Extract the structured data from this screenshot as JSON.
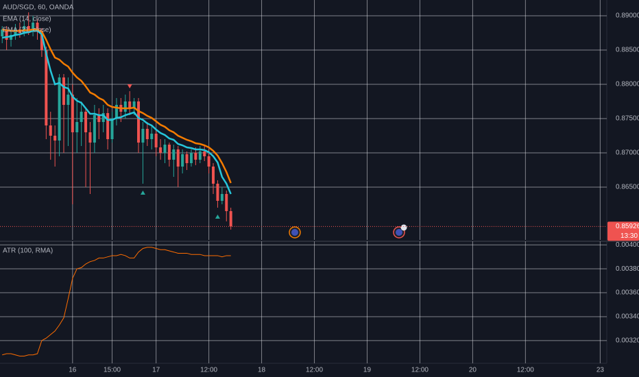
{
  "chart_data": [
    {
      "type": "candlestick",
      "title": "AUD/SGD, 60, OANDA",
      "up_color": "#26a69a",
      "down_color": "#ef5350",
      "open": [
        0.887,
        0.888,
        0.8865,
        0.8872,
        0.888,
        0.8875,
        0.8885,
        0.888,
        0.889,
        0.8878,
        0.885,
        0.874,
        0.8725,
        0.8718,
        0.881,
        0.877,
        0.8785,
        0.873,
        0.8745,
        0.876,
        0.873,
        0.8715,
        0.8755,
        0.8745,
        0.8758,
        0.872,
        0.875,
        0.877,
        0.876,
        0.8775,
        0.8765,
        0.8775,
        0.8715,
        0.8735,
        0.872,
        0.8728,
        0.8708,
        0.87,
        0.8712,
        0.869,
        0.8705,
        0.868,
        0.8698,
        0.8685,
        0.87,
        0.869,
        0.8702,
        0.8695,
        0.868,
        0.8655,
        0.863,
        0.864,
        0.8615
      ],
      "high": [
        0.8885,
        0.8885,
        0.888,
        0.8888,
        0.889,
        0.8893,
        0.8905,
        0.89,
        0.8895,
        0.8882,
        0.8855,
        0.876,
        0.874,
        0.8815,
        0.8815,
        0.881,
        0.88,
        0.878,
        0.8775,
        0.8765,
        0.8745,
        0.877,
        0.8765,
        0.877,
        0.8765,
        0.876,
        0.878,
        0.878,
        0.8785,
        0.879,
        0.878,
        0.878,
        0.8745,
        0.8745,
        0.874,
        0.8735,
        0.872,
        0.872,
        0.8715,
        0.8712,
        0.871,
        0.8705,
        0.8702,
        0.8705,
        0.8708,
        0.871,
        0.8712,
        0.8705,
        0.8685,
        0.866,
        0.865,
        0.8645,
        0.862
      ],
      "low": [
        0.886,
        0.885,
        0.8855,
        0.8865,
        0.8868,
        0.887,
        0.8872,
        0.887,
        0.8865,
        0.884,
        0.872,
        0.869,
        0.868,
        0.8695,
        0.87,
        0.871,
        0.8625,
        0.87,
        0.871,
        0.865,
        0.864,
        0.87,
        0.872,
        0.873,
        0.8705,
        0.8715,
        0.874,
        0.8745,
        0.875,
        0.8755,
        0.8755,
        0.87,
        0.8655,
        0.871,
        0.8705,
        0.8695,
        0.869,
        0.8685,
        0.868,
        0.8665,
        0.865,
        0.867,
        0.8675,
        0.868,
        0.8682,
        0.8685,
        0.8688,
        0.867,
        0.864,
        0.862,
        0.8625,
        0.86,
        0.8588
      ],
      "close": [
        0.888,
        0.8865,
        0.8872,
        0.888,
        0.8875,
        0.8885,
        0.888,
        0.889,
        0.8878,
        0.885,
        0.874,
        0.8725,
        0.8718,
        0.881,
        0.877,
        0.8785,
        0.873,
        0.8745,
        0.876,
        0.873,
        0.8715,
        0.8755,
        0.8745,
        0.8758,
        0.872,
        0.875,
        0.877,
        0.876,
        0.8775,
        0.8765,
        0.8775,
        0.8715,
        0.8735,
        0.872,
        0.8728,
        0.8708,
        0.87,
        0.8712,
        0.869,
        0.8705,
        0.868,
        0.8698,
        0.8685,
        0.87,
        0.869,
        0.8702,
        0.8695,
        0.868,
        0.8655,
        0.863,
        0.864,
        0.8615,
        0.85926
      ],
      "series": [
        {
          "name": "EMA (14, close)",
          "color": "#26c6da",
          "values": [
            0.8868,
            0.8869,
            0.887,
            0.8872,
            0.8873,
            0.8875,
            0.8876,
            0.8878,
            0.8878,
            0.8873,
            0.8845,
            0.882,
            0.88,
            0.8802,
            0.8796,
            0.8794,
            0.8782,
            0.8776,
            0.8773,
            0.8765,
            0.8757,
            0.8757,
            0.8755,
            0.8755,
            0.8748,
            0.8748,
            0.8751,
            0.8752,
            0.8755,
            0.8757,
            0.8759,
            0.8751,
            0.8748,
            0.8743,
            0.874,
            0.8734,
            0.8729,
            0.8726,
            0.8721,
            0.8719,
            0.8713,
            0.8711,
            0.8708,
            0.8707,
            0.8705,
            0.8705,
            0.8704,
            0.8701,
            0.8695,
            0.8686,
            0.8665,
            0.8655,
            0.864
          ]
        },
        {
          "name": "EMA (21, close)",
          "color": "#f57c00",
          "values": [
            0.888,
            0.8879,
            0.8878,
            0.8878,
            0.8878,
            0.8879,
            0.8879,
            0.888,
            0.888,
            0.8877,
            0.8865,
            0.8851,
            0.8839,
            0.8836,
            0.883,
            0.8826,
            0.8817,
            0.881,
            0.8805,
            0.8797,
            0.8788,
            0.8785,
            0.878,
            0.8777,
            0.877,
            0.8767,
            0.8766,
            0.8765,
            0.8765,
            0.8765,
            0.8766,
            0.8761,
            0.8758,
            0.8754,
            0.8751,
            0.8746,
            0.8741,
            0.8738,
            0.8733,
            0.873,
            0.8725,
            0.8722,
            0.8719,
            0.8717,
            0.8714,
            0.8713,
            0.8711,
            0.8708,
            0.8703,
            0.8696,
            0.8685,
            0.8672,
            0.8656
          ]
        }
      ],
      "signals": [
        {
          "x": 29,
          "y": 0.8797,
          "direction": "down",
          "color": "#ef5350"
        },
        {
          "x": 32,
          "y": 0.8642,
          "direction": "up",
          "color": "#26a69a"
        },
        {
          "x": 49,
          "y": 0.8607,
          "direction": "up",
          "color": "#26a69a"
        }
      ],
      "last_price": {
        "value": 0.85926,
        "label": "0.85926"
      },
      "countdown": "13:30",
      "last_color": "#ef5350",
      "xlim": [
        -0.5,
        137.5
      ],
      "ylim": [
        0.8573,
        0.8923
      ],
      "yticks": [
        {
          "value": 0.865,
          "label": "0.86500"
        },
        {
          "value": 0.87,
          "label": "0.87000"
        },
        {
          "value": 0.875,
          "label": "0.87500"
        },
        {
          "value": 0.88,
          "label": "0.88000"
        },
        {
          "value": 0.885,
          "label": "0.88500"
        },
        {
          "value": 0.89,
          "label": "0.89000"
        }
      ],
      "grid": true
    },
    {
      "type": "line",
      "title": "ATR (100, RMA)",
      "series": [
        {
          "color": "#ff6d00",
          "values": [
            0.00308,
            0.00309,
            0.00309,
            0.00308,
            0.00307,
            0.00307,
            0.00308,
            0.00308,
            0.00309,
            0.0032,
            0.00322,
            0.00325,
            0.00328,
            0.00333,
            0.00339,
            0.00355,
            0.00372,
            0.0038,
            0.00381,
            0.00384,
            0.00386,
            0.00387,
            0.00389,
            0.00389,
            0.0039,
            0.00391,
            0.00391,
            0.00392,
            0.00391,
            0.00389,
            0.00389,
            0.00394,
            0.00397,
            0.00398,
            0.00398,
            0.00397,
            0.00396,
            0.00396,
            0.00395,
            0.00394,
            0.00393,
            0.00393,
            0.00393,
            0.00392,
            0.00392,
            0.00392,
            0.00391,
            0.00391,
            0.00391,
            0.00391,
            0.0039,
            0.00391,
            0.00391
          ]
        }
      ],
      "xlim": [
        -0.5,
        137.5
      ],
      "ylim": [
        0.00301,
        0.00403
      ],
      "yticks": [
        {
          "value": 0.0032,
          "label": "0.00320"
        },
        {
          "value": 0.0034,
          "label": "0.00340"
        },
        {
          "value": 0.0036,
          "label": "0.00360"
        },
        {
          "value": 0.0038,
          "label": "0.00380"
        },
        {
          "value": 0.004,
          "label": "0.00400"
        }
      ],
      "xticks": [
        {
          "value": 16,
          "label": "16"
        },
        {
          "value": 25,
          "label": "15:00"
        },
        {
          "value": 35,
          "label": "17"
        },
        {
          "value": 47,
          "label": "12:00"
        },
        {
          "value": 59,
          "label": "18"
        },
        {
          "value": 71,
          "label": "12:00"
        },
        {
          "value": 83,
          "label": "19"
        },
        {
          "value": 95,
          "label": "12:00"
        },
        {
          "value": 107,
          "label": "20"
        },
        {
          "value": 119,
          "label": "12:00"
        },
        {
          "value": 136,
          "label": "23"
        }
      ],
      "grid": true
    }
  ]
}
